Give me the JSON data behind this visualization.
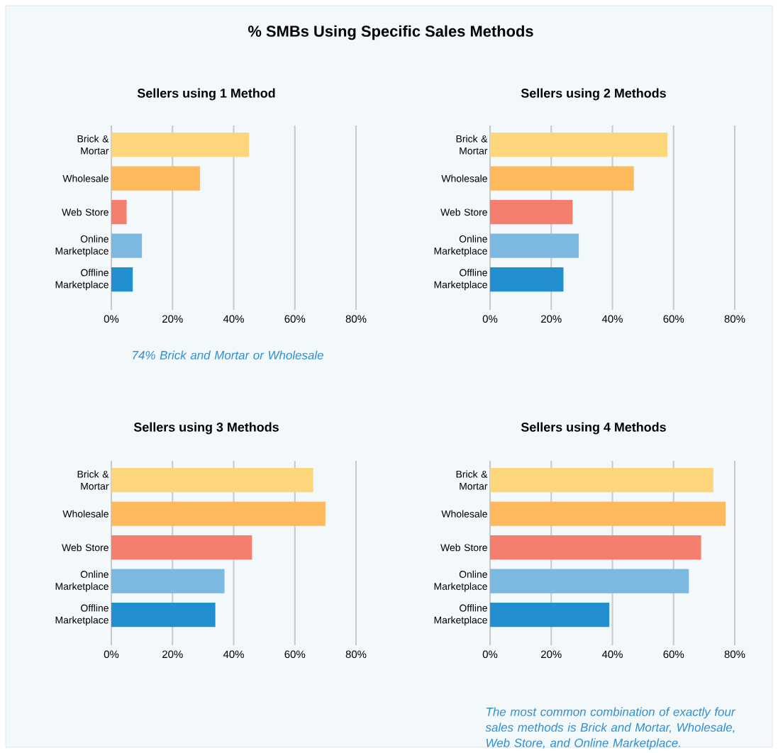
{
  "chart_data": [
    {
      "type": "bar",
      "orientation": "horizontal",
      "title": "% SMBs Using Specific Sales Methods",
      "subtitle": "Sellers using 1 Method",
      "categories": [
        "Brick & Mortar",
        "Wholesale",
        "Web Store",
        "Online Marketplace",
        "Offline Marketplace"
      ],
      "values": [
        45,
        29,
        5,
        10,
        7
      ],
      "colors": [
        "#fdd57a",
        "#fdb95c",
        "#f47f6e",
        "#7bb9e0",
        "#2290cf"
      ],
      "xlim": [
        0,
        80
      ],
      "xticks": [
        {
          "value": 0,
          "label": "0%"
        },
        {
          "value": 20,
          "label": "20%"
        },
        {
          "value": 40,
          "label": "40%"
        },
        {
          "value": 60,
          "label": "60%"
        },
        {
          "value": 80,
          "label": "80%"
        }
      ],
      "grid": "x",
      "annotations": [
        "74% Brick and Mortar or Wholesale"
      ]
    },
    {
      "type": "bar",
      "orientation": "horizontal",
      "subtitle": "Sellers using 2 Methods",
      "categories": [
        "Brick & Mortar",
        "Wholesale",
        "Web Store",
        "Online Marketplace",
        "Offline Marketplace"
      ],
      "values": [
        58,
        47,
        27,
        29,
        24
      ],
      "colors": [
        "#fdd57a",
        "#fdb95c",
        "#f47f6e",
        "#7bb9e0",
        "#2290cf"
      ],
      "xlim": [
        0,
        80
      ],
      "xticks": [
        {
          "value": 0,
          "label": "0%"
        },
        {
          "value": 20,
          "label": "20%"
        },
        {
          "value": 40,
          "label": "40%"
        },
        {
          "value": 60,
          "label": "60%"
        },
        {
          "value": 80,
          "label": "80%"
        }
      ],
      "grid": "x"
    },
    {
      "type": "bar",
      "orientation": "horizontal",
      "subtitle": "Sellers using 3 Methods",
      "categories": [
        "Brick & Mortar",
        "Wholesale",
        "Web Store",
        "Online Marketplace",
        "Offline Marketplace"
      ],
      "values": [
        66,
        70,
        46,
        37,
        34
      ],
      "colors": [
        "#fdd57a",
        "#fdb95c",
        "#f47f6e",
        "#7bb9e0",
        "#2290cf"
      ],
      "xlim": [
        0,
        80
      ],
      "xticks": [
        {
          "value": 0,
          "label": "0%"
        },
        {
          "value": 20,
          "label": "20%"
        },
        {
          "value": 40,
          "label": "40%"
        },
        {
          "value": 60,
          "label": "60%"
        },
        {
          "value": 80,
          "label": "80%"
        }
      ],
      "grid": "x"
    },
    {
      "type": "bar",
      "orientation": "horizontal",
      "subtitle": "Sellers using 4 Methods",
      "categories": [
        "Brick & Mortar",
        "Wholesale",
        "Web Store",
        "Online Marketplace",
        "Offline Marketplace"
      ],
      "values": [
        73,
        77,
        69,
        65,
        39
      ],
      "colors": [
        "#fdd57a",
        "#fdb95c",
        "#f47f6e",
        "#7bb9e0",
        "#2290cf"
      ],
      "xlim": [
        0,
        80
      ],
      "xticks": [
        {
          "value": 0,
          "label": "0%"
        },
        {
          "value": 20,
          "label": "20%"
        },
        {
          "value": 40,
          "label": "40%"
        },
        {
          "value": 60,
          "label": "60%"
        },
        {
          "value": 80,
          "label": "80%"
        }
      ],
      "grid": "x",
      "annotations": [
        "The most common combination of exactly four sales methods is Brick and Mortar, Wholesale, Web Store, and Online Marketplace."
      ]
    }
  ]
}
